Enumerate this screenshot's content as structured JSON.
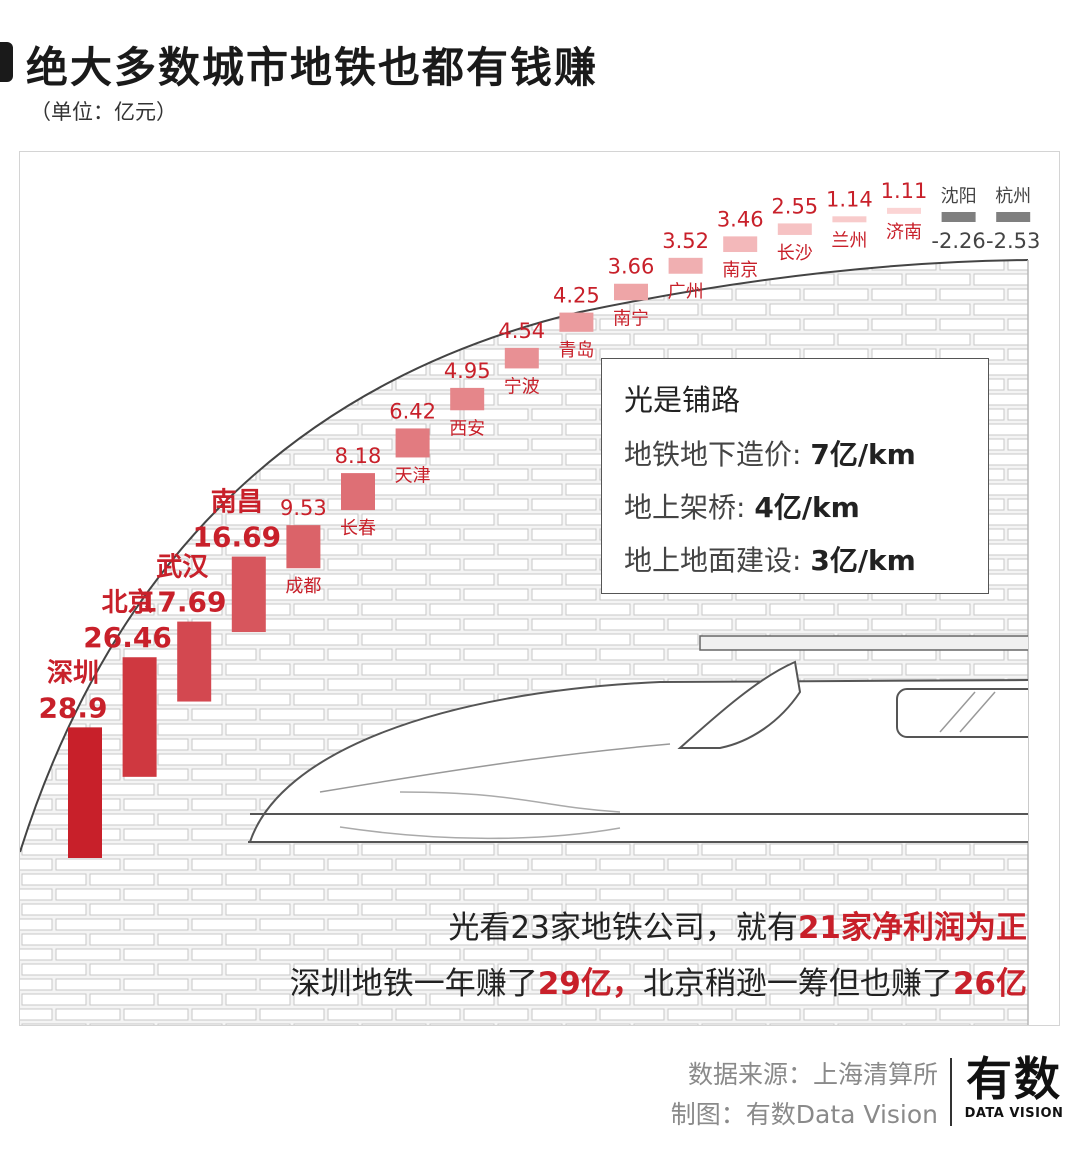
{
  "header": {
    "title": "绝大多数城市地铁也都有钱赚",
    "unit": "（单位：亿元）"
  },
  "chart_data": {
    "type": "bar",
    "categories": [
      "深圳",
      "北京",
      "武汉",
      "南昌",
      "成都",
      "长春",
      "天津",
      "西安",
      "宁波",
      "青岛",
      "南宁",
      "广州",
      "南京",
      "长沙",
      "兰州",
      "济南",
      "沈阳",
      "杭州"
    ],
    "values": [
      28.9,
      26.46,
      17.69,
      16.69,
      9.53,
      8.18,
      6.42,
      4.95,
      4.54,
      4.25,
      3.66,
      3.52,
      3.46,
      2.55,
      1.14,
      1.11,
      -2.26,
      -2.53
    ],
    "value_labels": [
      "28.9",
      "26.46",
      "17.69",
      "16.69",
      "9.53",
      "8.18",
      "6.42",
      "4.95",
      "4.54",
      "4.25",
      "3.66",
      "3.52",
      "3.46",
      "2.55",
      "1.14",
      "1.11",
      "-2.26",
      "-2.53"
    ],
    "colors": {
      "positive_dark": "#c8202a",
      "positive_light": "#fbd4d4",
      "negative": "#7f7f7f",
      "label_red": "#c8202a",
      "label_grey": "#444444"
    }
  },
  "infobox": {
    "title": "光是铺路",
    "rows": [
      {
        "label": "地铁地下造价: ",
        "value": "7亿/km"
      },
      {
        "label": "地上架桥: ",
        "value": "4亿/km"
      },
      {
        "label": "地上地面建设: ",
        "value": "3亿/km"
      }
    ]
  },
  "captions": {
    "line1_a": "光看23家地铁公司，就有",
    "line1_b": "21家净利润为正",
    "line2_a": "深圳地铁一年赚了",
    "line2_b": "29亿，",
    "line2_c": "北京稍逊一筹但也赚了",
    "line2_d": "26亿"
  },
  "footer": {
    "source": "数据来源：上海清算所",
    "credit": "制图：有数Data Vision",
    "brand_main": "有数",
    "brand_sub": "DATA VISION"
  }
}
